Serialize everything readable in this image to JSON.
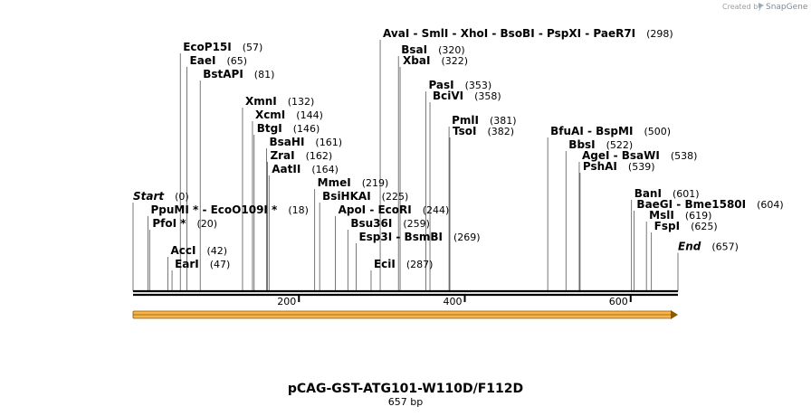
{
  "credit": {
    "prefix": "Created by",
    "brand": "SnapGene"
  },
  "plasmid": {
    "name": "pCAG-GST-ATG101-W110D/F112D",
    "length_label": "657 bp",
    "length": 657
  },
  "axis": {
    "ticks": [
      200,
      400,
      600
    ]
  },
  "colors": {
    "feature_fill": "#f6b54a",
    "feature_stroke": "#8a5a00",
    "line": "#000000",
    "leader": "#555555"
  },
  "sites": [
    {
      "text": "Start",
      "pos": 0,
      "pos_label": "(0)",
      "row": 11,
      "italic": true
    },
    {
      "text": "EcoP15I",
      "pos": 57,
      "pos_label": "(57)",
      "row": 0
    },
    {
      "text": "EaeI",
      "pos": 65,
      "pos_label": "(65)",
      "row": 1
    },
    {
      "text": "BstAPI",
      "pos": 81,
      "pos_label": "(81)",
      "row": 2
    },
    {
      "text": "XmnI",
      "pos": 132,
      "pos_label": "(132)",
      "row": 4
    },
    {
      "text": "XcmI",
      "pos": 144,
      "pos_label": "(144)",
      "row": 5
    },
    {
      "text": "BtgI",
      "pos": 146,
      "pos_label": "(146)",
      "row": 6
    },
    {
      "text": "BsaHI",
      "pos": 161,
      "pos_label": "(161)",
      "row": 7
    },
    {
      "text": "ZraI",
      "pos": 162,
      "pos_label": "(162)",
      "row": 8
    },
    {
      "text": "AatII",
      "pos": 164,
      "pos_label": "(164)",
      "row": 9
    },
    {
      "text": "PpuMI * - EcoO109I *",
      "pos": 18,
      "pos_label": "(18)",
      "row": 12
    },
    {
      "text": "PfoI *",
      "pos": 20,
      "pos_label": "(20)",
      "row": 13
    },
    {
      "text": "AccI",
      "pos": 42,
      "pos_label": "(42)",
      "row": 15
    },
    {
      "text": "EarI",
      "pos": 47,
      "pos_label": "(47)",
      "row": 16
    },
    {
      "text": "MmeI",
      "pos": 219,
      "pos_label": "(219)",
      "row": 10
    },
    {
      "text": "BsiHKAI",
      "pos": 225,
      "pos_label": "(225)",
      "row": 11
    },
    {
      "text": "ApoI - EcoRI",
      "pos": 244,
      "pos_label": "(244)",
      "row": 12
    },
    {
      "text": "Bsu36I",
      "pos": 259,
      "pos_label": "(259)",
      "row": 13
    },
    {
      "text": "Esp3I - BsmBI",
      "pos": 269,
      "pos_label": "(269)",
      "row": 14
    },
    {
      "text": "EciI",
      "pos": 287,
      "pos_label": "(287)",
      "row": 16
    },
    {
      "text": "AvaI - SmlI - XhoI - BsoBI - PspXI - PaeR7I",
      "pos": 298,
      "pos_label": "(298)",
      "row": -1
    },
    {
      "text": "BsaI",
      "pos": 320,
      "pos_label": "(320)",
      "row": 0.2
    },
    {
      "text": "XbaI",
      "pos": 322,
      "pos_label": "(322)",
      "row": 1
    },
    {
      "text": "PasI",
      "pos": 353,
      "pos_label": "(353)",
      "row": 2.8
    },
    {
      "text": "BciVI",
      "pos": 358,
      "pos_label": "(358)",
      "row": 3.6
    },
    {
      "text": "PmlI",
      "pos": 381,
      "pos_label": "(381)",
      "row": 5.4
    },
    {
      "text": "TsoI",
      "pos": 382,
      "pos_label": "(382)",
      "row": 6.2
    },
    {
      "text": "BfuAI - BspMI",
      "pos": 500,
      "pos_label": "(500)",
      "row": 6.2
    },
    {
      "text": "BbsI",
      "pos": 522,
      "pos_label": "(522)",
      "row": 7.2
    },
    {
      "text": "AgeI - BsaWI",
      "pos": 538,
      "pos_label": "(538)",
      "row": 8
    },
    {
      "text": "PshAI",
      "pos": 539,
      "pos_label": "(539)",
      "row": 8.8
    },
    {
      "text": "BanI",
      "pos": 601,
      "pos_label": "(601)",
      "row": 10.8
    },
    {
      "text": "BaeGI - Bme1580I",
      "pos": 604,
      "pos_label": "(604)",
      "row": 11.6
    },
    {
      "text": "MslI",
      "pos": 619,
      "pos_label": "(619)",
      "row": 12.4
    },
    {
      "text": "FspI",
      "pos": 625,
      "pos_label": "(625)",
      "row": 13.2
    },
    {
      "text": "End",
      "pos": 657,
      "pos_label": "(657)",
      "row": 14.7,
      "italic": true
    }
  ]
}
